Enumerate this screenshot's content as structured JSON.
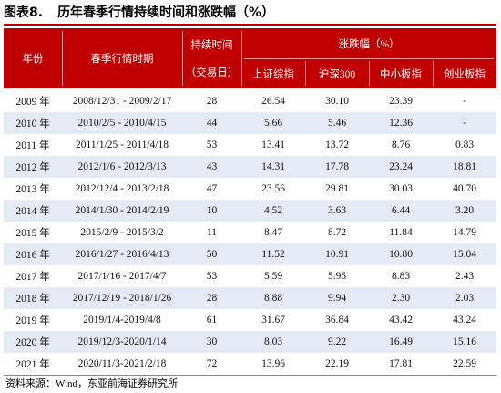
{
  "header": {
    "label": "图表8.",
    "title": "历年春季行情持续时间和涨跌幅（%）"
  },
  "table": {
    "columns": [
      "年份",
      "春季行情时期",
      "持续时间",
      "（交易日）",
      "涨跌幅（%）"
    ],
    "subcolumns": [
      "上证综指",
      "沪深300",
      "中小板指",
      "创业板指"
    ],
    "rows": [
      [
        "2009 年",
        "2008/12/31 - 2009/2/17",
        "28",
        "26.54",
        "30.10",
        "23.39",
        "-"
      ],
      [
        "2010 年",
        "2010/2/5 - 2010/4/15",
        "44",
        "5.66",
        "5.46",
        "12.36",
        "-"
      ],
      [
        "2011 年",
        "2011/1/25 - 2011/4/18",
        "53",
        "13.41",
        "13.72",
        "8.76",
        "0.83"
      ],
      [
        "2012 年",
        "2012/1/6 - 2012/3/13",
        "43",
        "14.31",
        "17.78",
        "23.24",
        "18.81"
      ],
      [
        "2013 年",
        "2012/12/4 - 2013/2/18",
        "47",
        "23.56",
        "29.81",
        "30.03",
        "40.70"
      ],
      [
        "2014 年",
        "2014/1/30 - 2014/2/19",
        "10",
        "4.52",
        "3.63",
        "6.44",
        "3.20"
      ],
      [
        "2015 年",
        "2015/2/9 - 2015/3/2",
        "11",
        "8.47",
        "8.72",
        "11.84",
        "14.79"
      ],
      [
        "2016 年",
        "2016/1/27 - 2016/4/13",
        "50",
        "11.52",
        "10.91",
        "10.80",
        "15.04"
      ],
      [
        "2017 年",
        "2017/1/16 - 2017/4/7",
        "53",
        "5.59",
        "5.95",
        "8.83",
        "2.43"
      ],
      [
        "2018 年",
        "2017/12/19 - 2018/1/26",
        "28",
        "8.88",
        "9.94",
        "2.30",
        "2.03"
      ],
      [
        "2019 年",
        "2019/1/4-2019/4/8",
        "61",
        "31.67",
        "36.84",
        "43.42",
        "43.24"
      ],
      [
        "2020 年",
        "2019/12/3-2020/1/14",
        "30",
        "8.03",
        "9.22",
        "16.49",
        "15.16"
      ],
      [
        "2021 年",
        "2020/11/3-2021/2/18",
        "72",
        "13.96",
        "22.19",
        "17.81",
        "22.59"
      ]
    ]
  },
  "source": "资料来源：Wind，东亚前海证券研究所"
}
